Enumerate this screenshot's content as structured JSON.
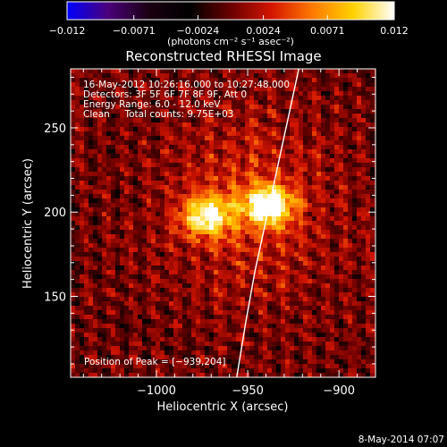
{
  "chart_data": {
    "type": "heatmap",
    "title": "Reconstructed RHESSI Image",
    "xlabel": "Heliocentric X (arcsec)",
    "ylabel": "Heliocentric Y (arcsec)",
    "xlim": [
      -1047,
      -880
    ],
    "ylim": [
      102,
      285
    ],
    "xticks": [
      -1000,
      -950,
      -900
    ],
    "xtick_labels": [
      "−1000",
      "−950",
      "−900"
    ],
    "yticks": [
      150,
      200,
      250
    ],
    "ytick_labels": [
      "150",
      "200",
      "250"
    ],
    "colorbar": {
      "range": [
        -0.012,
        0.012
      ],
      "ticks": [
        -0.012,
        -0.0071,
        -0.0024,
        0.0024,
        0.0071,
        0.012
      ],
      "tick_labels": [
        "−0.012",
        "−0.0071",
        "−0.0024",
        "0.0024",
        "0.0071",
        "0.012"
      ],
      "unit_label": "(photons cm⁻² s⁻¹ asec⁻²)",
      "colors": [
        "#0000ff",
        "#4a007a",
        "#1a0012",
        "#000000",
        "#6a0000",
        "#d41500",
        "#ff7a00",
        "#ffd200",
        "#ffffff"
      ]
    },
    "info": [
      "16‑May‑2012 10:26:16.000 to 10:27:48.000",
      "Detectors: 3F 5F 6F 7F 8F 9F, Att 0",
      "Energy Range: 6.0 ‑ 12.0 keV",
      "Clean     Total counts: 9.75E+03"
    ],
    "peak_label": "Position of Peak = [−939,204]",
    "peak": [
      -939,
      204
    ],
    "sources": [
      {
        "x": -939,
        "y": 204,
        "peak": 0.012
      },
      {
        "x": -972,
        "y": 198,
        "peak": 0.0105
      }
    ],
    "limb_curve": [
      [
        -922,
        285
      ],
      [
        -928,
        255
      ],
      [
        -934,
        225
      ],
      [
        -940,
        195
      ],
      [
        -946,
        165
      ],
      [
        -951,
        135
      ],
      [
        -956,
        102
      ]
    ],
    "date_stamp": "8‑May‑2014 07:07"
  }
}
